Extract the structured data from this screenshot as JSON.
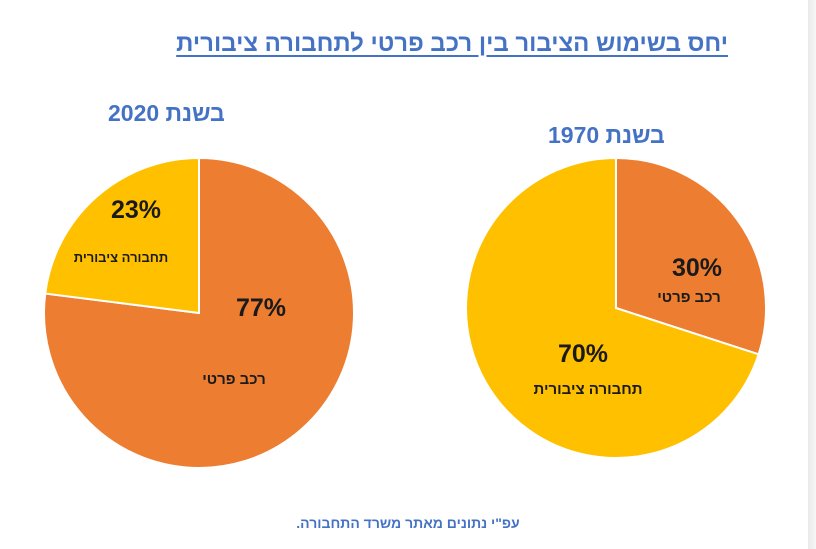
{
  "title": "יחס בשימוש הציבור בין רכב פרטי לתחבורה ציבורית",
  "colors": {
    "title": "#4472c4",
    "private": "#ed7d31",
    "public": "#ffc000",
    "border": "#ffffff"
  },
  "chart_data": [
    {
      "type": "pie",
      "title": "בשנת 2020",
      "slices": [
        {
          "label": "רכב פרטי",
          "value": 77,
          "value_label": "77%",
          "color": "#ed7d31"
        },
        {
          "label": "תחבורה ציבורית",
          "value": 23,
          "value_label": "23%",
          "color": "#ffc000"
        }
      ]
    },
    {
      "type": "pie",
      "title": "בשנת 1970",
      "slices": [
        {
          "label": "רכב פרטי",
          "value": 30,
          "value_label": "30%",
          "color": "#ed7d31"
        },
        {
          "label": "תחבורה ציבורית",
          "value": 70,
          "value_label": "70%",
          "color": "#ffc000"
        }
      ]
    }
  ],
  "footer": "עפ\"י נתונים מאתר משרד התחבורה."
}
